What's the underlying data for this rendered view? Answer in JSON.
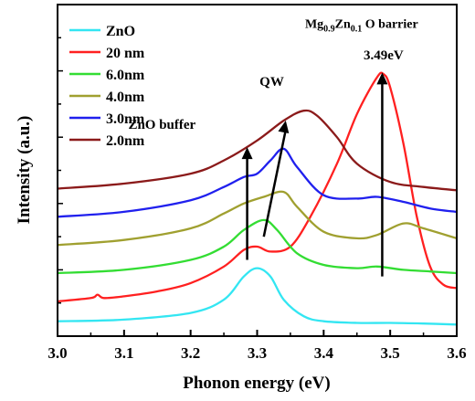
{
  "chart_data": {
    "type": "line",
    "title": "",
    "xlabel": "Phonon energy (eV)",
    "ylabel": "Intensity (a.u.)",
    "xlim": [
      3.0,
      3.6
    ],
    "ylim": [
      0,
      10
    ],
    "x_ticks": [
      "3.0",
      "3.1",
      "3.2",
      "3.3",
      "3.4",
      "3.5",
      "3.6"
    ],
    "y_ticks_labeled": false,
    "grid": false,
    "legend_position": "top-left",
    "series": [
      {
        "name": "ZnO",
        "color": "#33e6f2",
        "points": [
          [
            3.0,
            0.45
          ],
          [
            3.1,
            0.5
          ],
          [
            3.2,
            0.7
          ],
          [
            3.25,
            1.1
          ],
          [
            3.28,
            1.8
          ],
          [
            3.3,
            2.05
          ],
          [
            3.32,
            1.8
          ],
          [
            3.34,
            1.1
          ],
          [
            3.37,
            0.6
          ],
          [
            3.4,
            0.45
          ],
          [
            3.45,
            0.4
          ],
          [
            3.5,
            0.4
          ],
          [
            3.55,
            0.38
          ],
          [
            3.6,
            0.35
          ]
        ]
      },
      {
        "name": "20 nm",
        "color": "#ff2020",
        "points": [
          [
            3.0,
            1.05
          ],
          [
            3.05,
            1.15
          ],
          [
            3.06,
            1.25
          ],
          [
            3.07,
            1.15
          ],
          [
            3.1,
            1.2
          ],
          [
            3.15,
            1.35
          ],
          [
            3.2,
            1.6
          ],
          [
            3.25,
            2.1
          ],
          [
            3.28,
            2.6
          ],
          [
            3.3,
            2.7
          ],
          [
            3.32,
            2.55
          ],
          [
            3.35,
            2.7
          ],
          [
            3.38,
            3.6
          ],
          [
            3.42,
            5.2
          ],
          [
            3.45,
            6.7
          ],
          [
            3.48,
            7.8
          ],
          [
            3.49,
            7.9
          ],
          [
            3.5,
            7.5
          ],
          [
            3.52,
            5.8
          ],
          [
            3.54,
            3.6
          ],
          [
            3.56,
            2.1
          ],
          [
            3.58,
            1.55
          ],
          [
            3.6,
            1.45
          ]
        ]
      },
      {
        "name": "6.0nm",
        "color": "#33dd33",
        "points": [
          [
            3.0,
            1.9
          ],
          [
            3.1,
            2.0
          ],
          [
            3.2,
            2.3
          ],
          [
            3.25,
            2.7
          ],
          [
            3.28,
            3.2
          ],
          [
            3.31,
            3.5
          ],
          [
            3.33,
            3.2
          ],
          [
            3.36,
            2.5
          ],
          [
            3.4,
            2.15
          ],
          [
            3.45,
            2.05
          ],
          [
            3.48,
            2.1
          ],
          [
            3.52,
            2.0
          ],
          [
            3.56,
            1.95
          ],
          [
            3.6,
            1.9
          ]
        ]
      },
      {
        "name": "4.0nm",
        "color": "#a0a030",
        "points": [
          [
            3.0,
            2.75
          ],
          [
            3.1,
            2.9
          ],
          [
            3.2,
            3.25
          ],
          [
            3.25,
            3.7
          ],
          [
            3.28,
            4.0
          ],
          [
            3.31,
            4.2
          ],
          [
            3.34,
            4.35
          ],
          [
            3.36,
            3.9
          ],
          [
            3.4,
            3.15
          ],
          [
            3.45,
            2.95
          ],
          [
            3.48,
            3.05
          ],
          [
            3.52,
            3.4
          ],
          [
            3.55,
            3.25
          ],
          [
            3.6,
            2.95
          ]
        ]
      },
      {
        "name": "3.0nm",
        "color": "#2020ee",
        "points": [
          [
            3.0,
            3.6
          ],
          [
            3.1,
            3.75
          ],
          [
            3.2,
            4.1
          ],
          [
            3.25,
            4.5
          ],
          [
            3.28,
            4.8
          ],
          [
            3.3,
            4.9
          ],
          [
            3.32,
            5.3
          ],
          [
            3.34,
            5.65
          ],
          [
            3.36,
            5.1
          ],
          [
            3.4,
            4.25
          ],
          [
            3.45,
            4.15
          ],
          [
            3.48,
            4.2
          ],
          [
            3.52,
            4.05
          ],
          [
            3.56,
            3.85
          ],
          [
            3.6,
            3.75
          ]
        ]
      },
      {
        "name": "2.0nm",
        "color": "#8b1a1a",
        "points": [
          [
            3.0,
            4.45
          ],
          [
            3.1,
            4.6
          ],
          [
            3.2,
            4.9
          ],
          [
            3.25,
            5.3
          ],
          [
            3.3,
            5.9
          ],
          [
            3.34,
            6.5
          ],
          [
            3.37,
            6.8
          ],
          [
            3.39,
            6.65
          ],
          [
            3.42,
            6.0
          ],
          [
            3.45,
            5.2
          ],
          [
            3.5,
            4.65
          ],
          [
            3.55,
            4.5
          ],
          [
            3.6,
            4.4
          ]
        ]
      }
    ],
    "annotations": [
      {
        "text": "ZnO buffer",
        "x": 3.157,
        "y": 6.25
      },
      {
        "text": "QW",
        "x": 3.322,
        "y": 7.55
      },
      {
        "text": "3.49eV",
        "x": 3.49,
        "y": 8.35
      }
    ],
    "barrier_label": {
      "base1": "Mg",
      "sub1": "0.9",
      "base2": "Zn",
      "sub2": "0.1",
      "rest": "O barrier",
      "x": 3.457,
      "y": 9.3
    },
    "arrows": [
      {
        "name": "zno-buffer-arrow",
        "x1": 3.285,
        "y1": 2.3,
        "x2": 3.285,
        "y2": 5.7
      },
      {
        "name": "qw-arrow",
        "x1": 3.31,
        "y1": 3.0,
        "x2": 3.343,
        "y2": 6.5
      },
      {
        "name": "barrier-arrow",
        "x1": 3.488,
        "y1": 1.8,
        "x2": 3.488,
        "y2": 7.95
      }
    ]
  }
}
